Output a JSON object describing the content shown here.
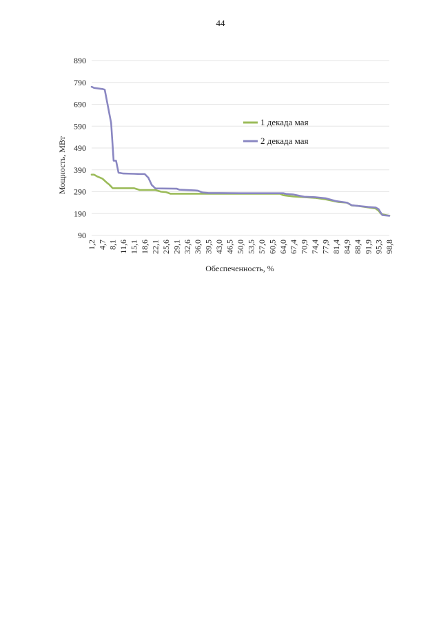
{
  "page": {
    "number": "44"
  },
  "chart_data": {
    "type": "line",
    "xlabel": "Обеспеченность, %",
    "ylabel": "Мощность, МВт",
    "ylim": [
      90,
      890
    ],
    "yticks": [
      "890",
      "790",
      "690",
      "590",
      "490",
      "390",
      "290",
      "190",
      "90"
    ],
    "xticks": [
      "1,2",
      "4,7",
      "8,1",
      "11,6",
      "15,1",
      "18,6",
      "22,1",
      "25,6",
      "29,1",
      "32,6",
      "36,0",
      "39,5",
      "43,0",
      "46,5",
      "50,0",
      "53,5",
      "57,0",
      "60,5",
      "64,0",
      "67,4",
      "70,9",
      "74,4",
      "77,9",
      "81,4",
      "84,9",
      "88,4",
      "91,9",
      "95,3",
      "98,8"
    ],
    "grid": true,
    "legend_position": "right",
    "series": [
      {
        "name": "1 декада мая",
        "color": "#9bbb59",
        "x": [
          1.2,
          2,
          3,
          4.7,
          6.3,
          7,
          8.1,
          10,
          15.1,
          17,
          20,
          22.1,
          24,
          25.6,
          27,
          30,
          36,
          40,
          50,
          60.5,
          63,
          64,
          65,
          67.4,
          70.9,
          74.4,
          77.9,
          81.4,
          82,
          84.9,
          86.5,
          88.4,
          91.9,
          94.3,
          95.3,
          96,
          97,
          98.8
        ],
        "values": [
          368,
          368,
          360,
          350,
          330,
          322,
          306,
          306,
          306,
          298,
          298,
          298,
          290,
          288,
          281,
          281,
          281,
          281,
          281,
          281,
          281,
          274,
          272,
          268,
          265,
          262,
          255,
          245,
          243,
          240,
          227,
          225,
          218,
          213,
          203,
          190,
          185,
          180
        ]
      },
      {
        "name": "2 декада мая",
        "color": "#8a87c2",
        "x": [
          1.2,
          2,
          4.7,
          5.5,
          7.6,
          8.4,
          9.2,
          10,
          11.6,
          15.1,
          17,
          18.6,
          19.8,
          20.9,
          22.1,
          29.1,
          30,
          35,
          36,
          37.5,
          39.5,
          43,
          50,
          57,
          60.5,
          64,
          65,
          67.4,
          70.9,
          74.4,
          77.9,
          81.4,
          84.9,
          86.5,
          88.4,
          91.9,
          94.3,
          95.3,
          96.5,
          98.8
        ],
        "values": [
          770,
          765,
          760,
          757,
          604,
          432,
          432,
          377,
          373,
          372,
          371,
          371,
          354,
          321,
          305,
          304,
          299,
          296,
          295,
          287,
          284,
          284,
          283,
          283,
          283,
          283,
          280,
          277,
          267,
          265,
          260,
          247,
          240,
          228,
          225,
          220,
          218,
          210,
          183,
          180
        ]
      }
    ]
  }
}
